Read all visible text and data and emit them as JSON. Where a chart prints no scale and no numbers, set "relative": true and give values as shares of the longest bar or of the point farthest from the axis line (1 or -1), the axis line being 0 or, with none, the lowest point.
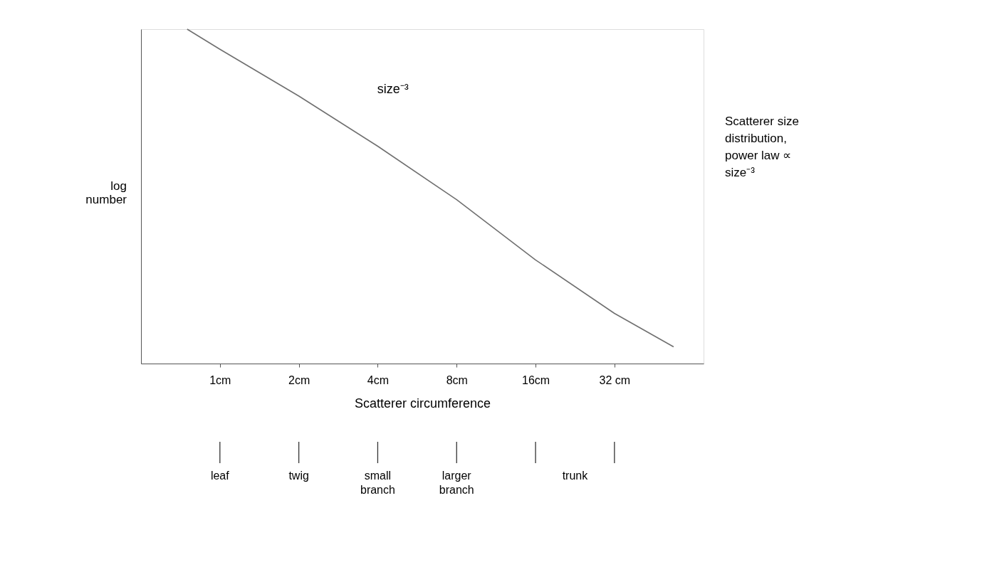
{
  "chart_data": {
    "type": "line",
    "relative": true,
    "xlabel": "Scatterer circumference",
    "ylabel": "log number",
    "log": "x",
    "x": [
      0.75,
      1,
      2,
      4,
      8,
      16,
      32,
      53.8
    ],
    "series": [
      {
        "color": "#707070",
        "values": [
          1,
          0.94,
          0.8,
          0.65,
          0.49,
          0.31,
          0.15,
          0.05
        ]
      }
    ],
    "xlim": [
      0.5,
      70
    ],
    "xticks": [
      {
        "value": 1,
        "label": "1cm"
      },
      {
        "value": 2,
        "label": "2cm"
      },
      {
        "value": 4,
        "label": "4cm"
      },
      {
        "value": 8,
        "label": "8cm"
      },
      {
        "value": 16,
        "label": "16cm"
      },
      {
        "value": 32,
        "label": "32 cm"
      }
    ],
    "grid": false,
    "annotations": [
      "size⁻³",
      "Scatterer size distribution, power law ∝ size⁻³",
      "leaf",
      "twig",
      "small branch",
      "larger branch",
      "trunk"
    ]
  }
}
